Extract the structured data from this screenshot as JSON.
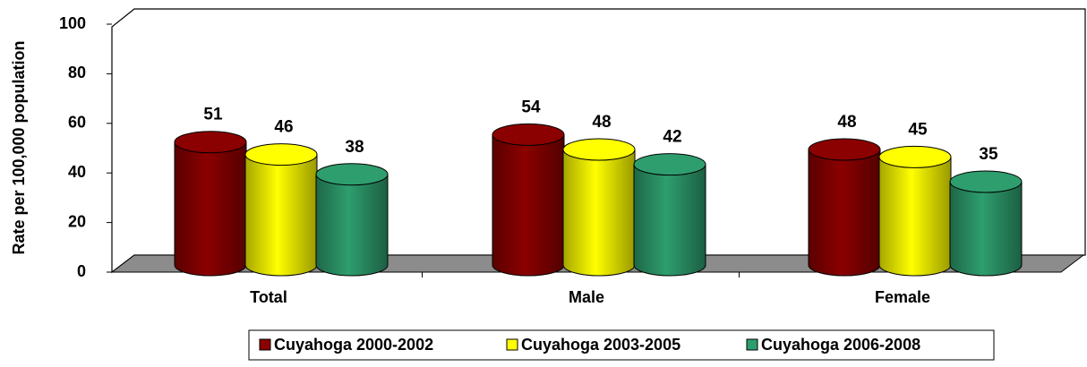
{
  "chart_data": {
    "type": "bar",
    "y_label": "Rate per 100,000 population",
    "categories": [
      "Total",
      "Male",
      "Female"
    ],
    "series": [
      {
        "name": "Cuyahoga 2000-2002",
        "color": "#8b0000",
        "values": [
          51,
          54,
          48
        ]
      },
      {
        "name": "Cuyahoga 2003-2005",
        "color": "#ffff00",
        "values": [
          46,
          48,
          45
        ]
      },
      {
        "name": "Cuyahoga 2006-2008",
        "color": "#2e9e6e",
        "values": [
          38,
          42,
          35
        ]
      }
    ],
    "ylim": [
      0,
      100
    ],
    "yticks": [
      0,
      20,
      40,
      60,
      80,
      100
    ],
    "legend": "bottom"
  }
}
